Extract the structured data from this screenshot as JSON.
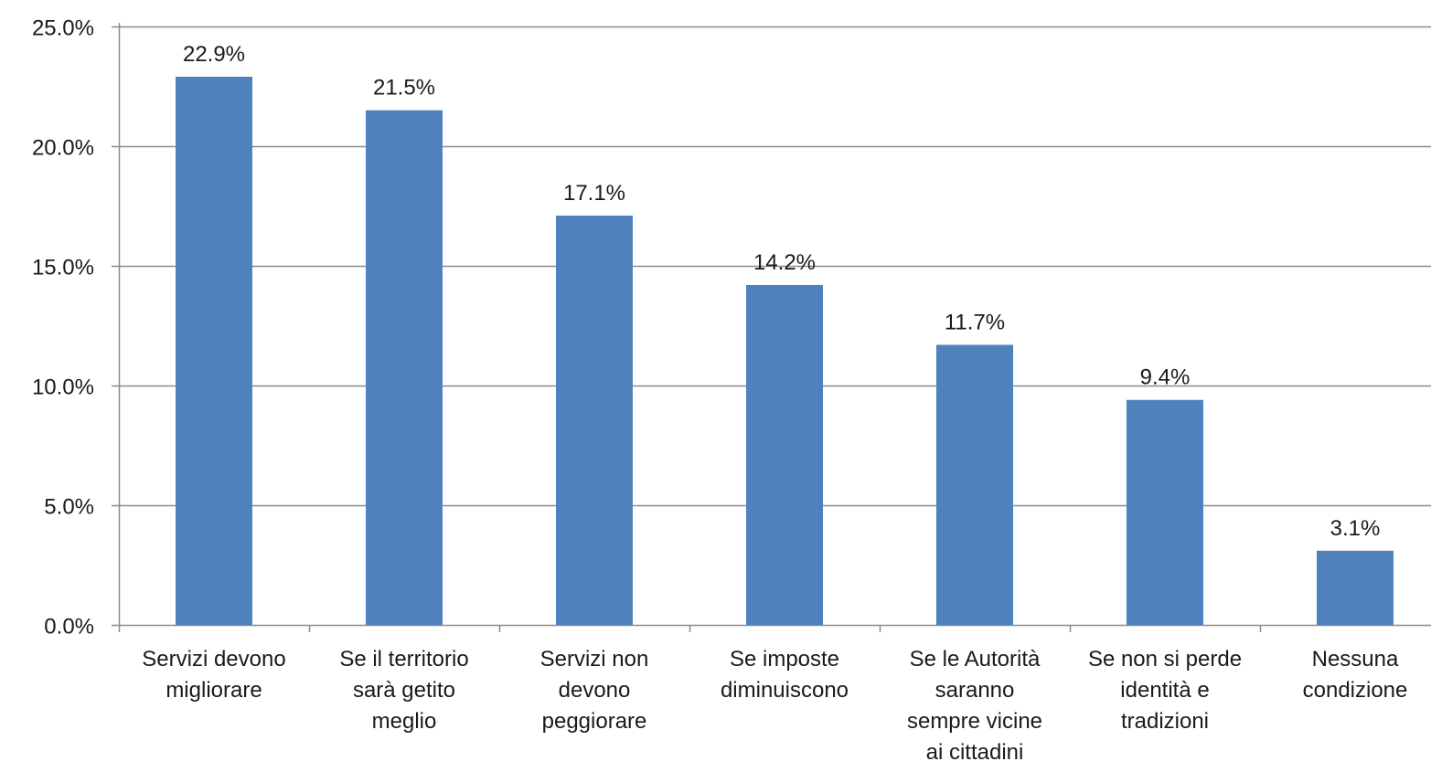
{
  "chart_data": {
    "type": "bar",
    "title": "",
    "xlabel": "",
    "ylabel": "",
    "ylim": [
      0,
      25
    ],
    "grid": true,
    "legend": "none",
    "bar_color": "#4f81bd",
    "categories": [
      [
        "Servizi devono",
        "migliorare"
      ],
      [
        "Se il territorio",
        "sarà getito",
        "meglio"
      ],
      [
        "Servizi non",
        "devono",
        "peggiorare"
      ],
      [
        "Se imposte",
        "diminuiscono"
      ],
      [
        "Se le Autorità",
        "saranno",
        "sempre vicine",
        "ai cittadini"
      ],
      [
        "Se non si perde",
        "identità e",
        "tradizioni"
      ],
      [
        "Nessuna",
        "condizione"
      ]
    ],
    "values": [
      22.9,
      21.5,
      17.1,
      14.2,
      11.7,
      9.4,
      3.1
    ],
    "data_labels": [
      "22.9%",
      "21.5%",
      "17.1%",
      "14.2%",
      "11.7%",
      "9.4%",
      "3.1%"
    ],
    "y_ticks": [
      0,
      5,
      10,
      15,
      20,
      25
    ],
    "y_tick_labels": [
      "0.0%",
      "5.0%",
      "10.0%",
      "15.0%",
      "20.0%",
      "25.0%"
    ]
  }
}
